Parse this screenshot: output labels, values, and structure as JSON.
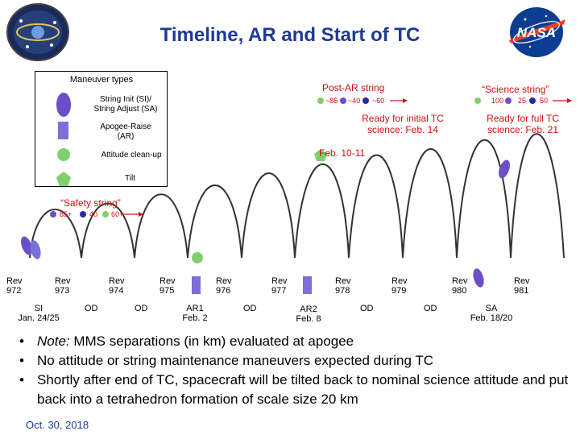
{
  "title": "Timeline, AR and Start of TC",
  "legend": {
    "title": "Maneuver types",
    "items": [
      {
        "label_line1": "String Init (SI)/",
        "label_line2": "String Adjust (SA)"
      },
      {
        "label_line1": "Apogee-Raise",
        "label_line2": "(AR)"
      },
      {
        "label_line1": "Attitude clean-up",
        "label_line2": ""
      },
      {
        "label_line1": "Tilt",
        "label_line2": ""
      }
    ]
  },
  "colors": {
    "purple": "#6a4fc8",
    "blue_purple": "#7b6fd8",
    "green": "#7fd06a",
    "red": "#d01010",
    "title_blue": "#1f3a93"
  },
  "strings": {
    "safety": {
      "label": "“Safety string”",
      "values": [
        "85+",
        "40",
        "60+"
      ]
    },
    "post_ar": {
      "label": "Post-AR string",
      "values": [
        "~85",
        "~40",
        "~60"
      ]
    },
    "science": {
      "label": "“Science string”",
      "values": [
        "100",
        "25",
        "50"
      ]
    }
  },
  "annotations": {
    "initial_line1": "Ready for initial TC",
    "initial_line2": "science: Feb. 14",
    "full_line1": "Ready for full TC",
    "full_line2": "science: Feb. 21",
    "feb_10_11": "Feb. 10-11"
  },
  "revs": [
    {
      "line1": "Rev",
      "line2": "972"
    },
    {
      "line1": "Rev",
      "line2": "973"
    },
    {
      "line1": "Rev",
      "line2": "974"
    },
    {
      "line1": "Rev",
      "line2": "975"
    },
    {
      "line1": "Rev",
      "line2": "976"
    },
    {
      "line1": "Rev",
      "line2": "977"
    },
    {
      "line1": "Rev",
      "line2": "978"
    },
    {
      "line1": "Rev",
      "line2": "979"
    },
    {
      "line1": "Rev",
      "line2": "980"
    },
    {
      "line1": "Rev",
      "line2": "981"
    }
  ],
  "events": [
    {
      "line1": "SI",
      "line2": "Jan. 24/25"
    },
    {
      "line1": "OD",
      "line2": ""
    },
    {
      "line1": "OD",
      "line2": ""
    },
    {
      "line1": "AR1",
      "line2": "Feb. 2"
    },
    {
      "line1": "OD",
      "line2": ""
    },
    {
      "line1": "AR2",
      "line2": "Feb. 8"
    },
    {
      "line1": "OD",
      "line2": ""
    },
    {
      "line1": "OD",
      "line2": ""
    },
    {
      "line1": "SA",
      "line2": "Feb. 18/20"
    }
  ],
  "notes": [
    {
      "italic": "Note:",
      "text": " MMS separations (in km) evaluated at apogee"
    },
    {
      "italic": "",
      "text": "No attitude or string maintenance maneuvers expected during TC"
    },
    {
      "italic": "",
      "text": "Shortly after end of TC, spacecraft will be tilted back to nominal science attitude and put back into a tetrahedron formation of scale size 20 km"
    }
  ],
  "bullet_char": "•",
  "footer_date": "Oct. 30, 2018"
}
